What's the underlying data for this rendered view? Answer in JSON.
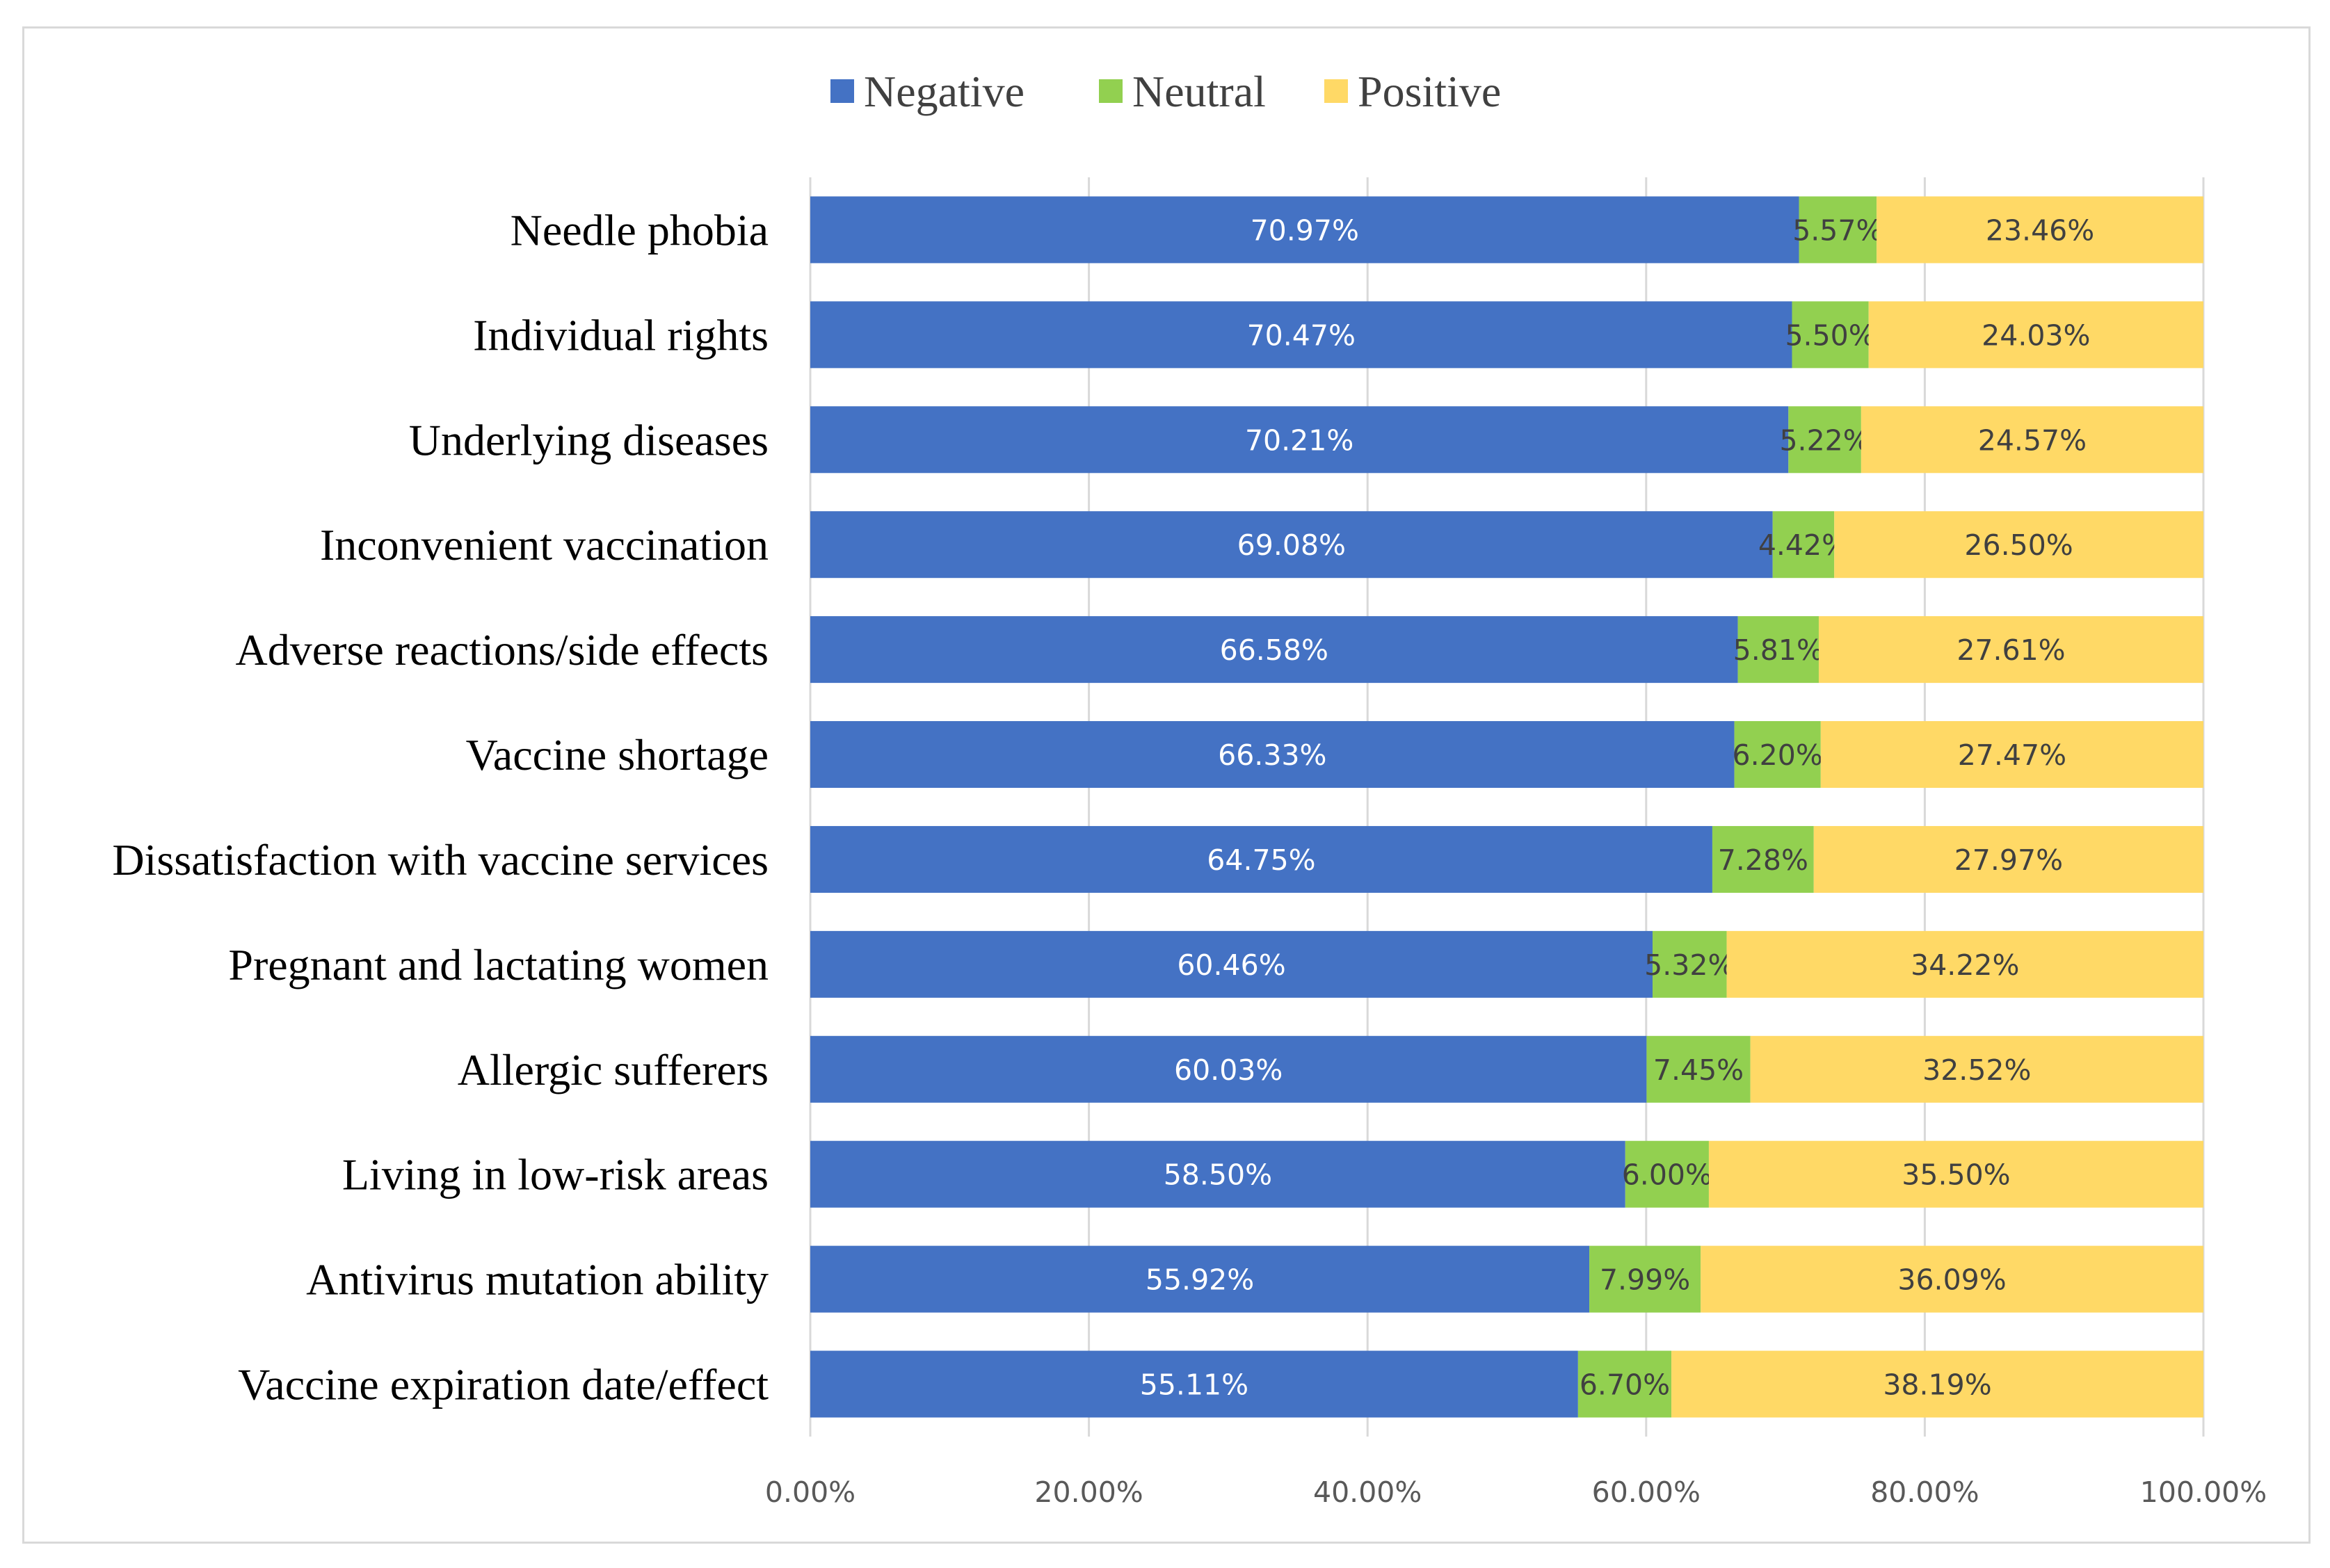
{
  "chart_data": {
    "type": "bar",
    "orientation": "horizontal",
    "stacked": true,
    "title": "",
    "xlabel": "",
    "ylabel": "",
    "xlim": [
      0,
      100
    ],
    "grid": true,
    "legend_position": "top",
    "x_ticks": [
      "0.00%",
      "20.00%",
      "40.00%",
      "60.00%",
      "80.00%",
      "100.00%"
    ],
    "categories": [
      "Needle phobia",
      "Individual rights",
      "Underlying diseases",
      "Inconvenient vaccination",
      "Adverse reactions/side effects",
      "Vaccine shortage",
      "Dissatisfaction with vaccine services",
      "Pregnant and lactating women",
      "Allergic sufferers",
      "Living in low-risk areas",
      "Antivirus mutation ability",
      "Vaccine expiration date/effect"
    ],
    "series": [
      {
        "name": "Negative",
        "color": "#4472c4",
        "label_color": "#ffffff",
        "values": [
          70.97,
          70.47,
          70.21,
          69.08,
          66.58,
          66.33,
          64.75,
          60.46,
          60.03,
          58.5,
          55.92,
          55.11
        ],
        "labels": [
          "70.97%",
          "70.47%",
          "70.21%",
          "69.08%",
          "66.58%",
          "66.33%",
          "64.75%",
          "60.46%",
          "60.03%",
          "58.50%",
          "55.92%",
          "55.11%"
        ]
      },
      {
        "name": "Neutral",
        "color": "#92d050",
        "label_color": "#404040",
        "values": [
          5.57,
          5.5,
          5.22,
          4.42,
          5.81,
          6.2,
          7.28,
          5.32,
          7.45,
          6.0,
          7.99,
          6.7
        ],
        "labels": [
          "5.57%",
          "5.50%",
          "5.22%",
          "4.42%",
          "5.81%",
          "6.20%",
          "7.28%",
          "5.32%",
          "7.45%",
          "6.00%",
          "7.99%",
          "6.70%"
        ]
      },
      {
        "name": "Positive",
        "color": "#ffd966",
        "label_color": "#404040",
        "values": [
          23.46,
          24.03,
          24.57,
          26.5,
          27.61,
          27.47,
          27.97,
          34.22,
          32.52,
          35.5,
          36.09,
          38.19
        ],
        "labels": [
          "23.46%",
          "24.03%",
          "24.57%",
          "26.50%",
          "27.61%",
          "27.47%",
          "27.97%",
          "34.22%",
          "32.52%",
          "35.50%",
          "36.09%",
          "38.19%"
        ]
      }
    ]
  }
}
